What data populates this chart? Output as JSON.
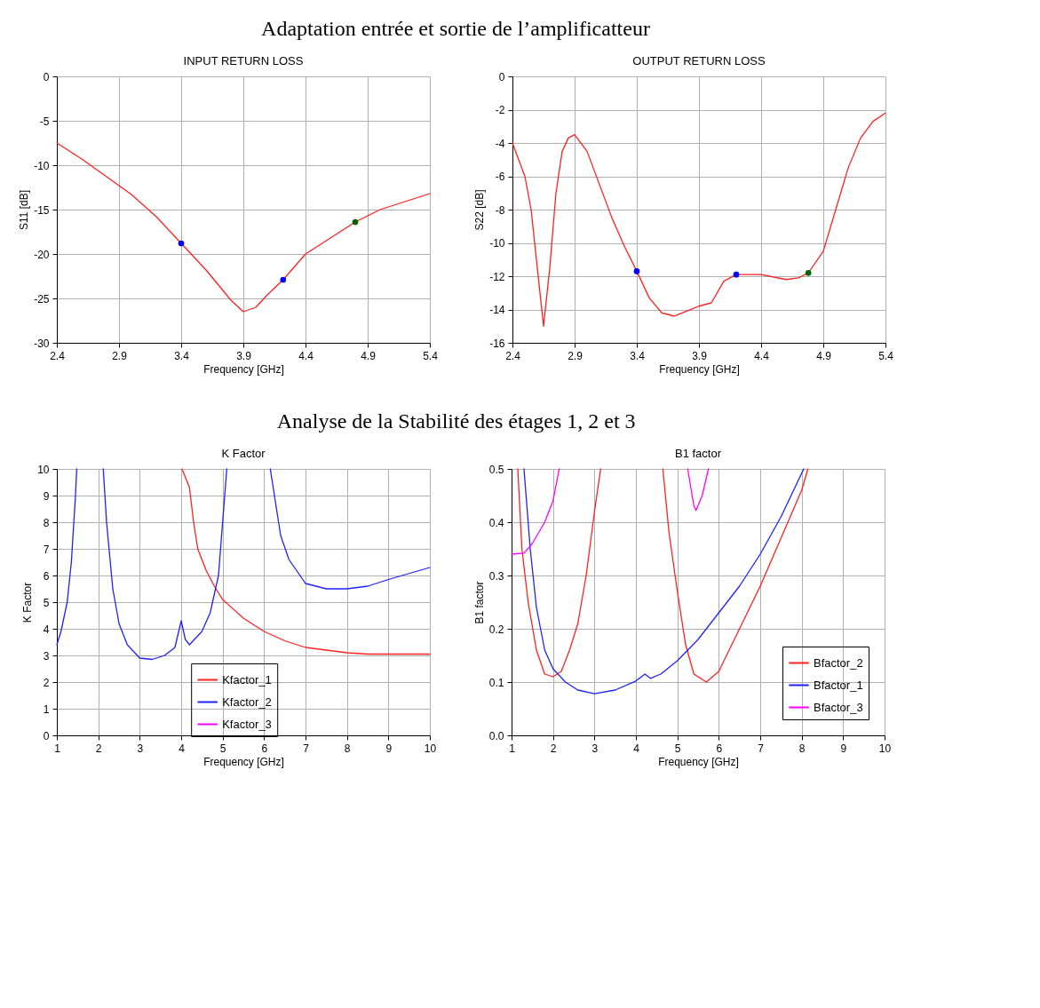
{
  "chart_data": [
    {
      "type": "line",
      "title": "INPUT RETURN LOSS",
      "xlabel": "Frequency [GHz]",
      "ylabel": "S11 [dB]",
      "annotations": [
        "Adaptation entrée et sortie de l’amplificatteur"
      ],
      "xlim": [
        2.4,
        5.4
      ],
      "xticks": [
        2.4,
        2.9,
        3.4,
        3.9,
        4.4,
        4.9,
        5.4
      ],
      "ylim": [
        -30,
        0
      ],
      "yticks": [
        0,
        -5,
        -10,
        -15,
        -20,
        -25,
        -30
      ],
      "grid": true,
      "series": [
        {
          "color": "#ff2020",
          "x": [
            2.4,
            2.6,
            2.8,
            3.0,
            3.2,
            3.4,
            3.6,
            3.8,
            3.9,
            4.0,
            4.1,
            4.22,
            4.4,
            4.6,
            4.8,
            5.0,
            5.2,
            5.4
          ],
          "values": [
            -7.5,
            -9.3,
            -11.3,
            -13.3,
            -15.8,
            -18.8,
            -21.8,
            -25.2,
            -26.5,
            -26.0,
            -24.5,
            -22.9,
            -20.0,
            -18.2,
            -16.4,
            -15.0,
            -14.1,
            -13.2
          ]
        },
        {
          "type": "scatter",
          "marker": "circle",
          "x": [
            3.4,
            4.22,
            4.8
          ],
          "values": [
            -18.8,
            -22.9,
            -16.4
          ],
          "colors": [
            "#0000ff",
            "#0000ff",
            "#006400"
          ]
        }
      ]
    },
    {
      "type": "line",
      "title": "OUTPUT RETURN LOSS",
      "xlabel": "Frequency [GHz]",
      "ylabel": "S22 [dB]",
      "xlim": [
        2.4,
        5.4
      ],
      "xticks": [
        2.4,
        2.9,
        3.4,
        3.9,
        4.4,
        4.9,
        5.4
      ],
      "ylim": [
        -16,
        0
      ],
      "yticks": [
        0,
        -2,
        -4,
        -6,
        -8,
        -10,
        -12,
        -14,
        -16
      ],
      "grid": true,
      "series": [
        {
          "color": "#ff2020",
          "x": [
            2.4,
            2.5,
            2.55,
            2.6,
            2.65,
            2.7,
            2.75,
            2.8,
            2.85,
            2.9,
            3.0,
            3.1,
            3.2,
            3.3,
            3.4,
            3.5,
            3.6,
            3.7,
            3.8,
            3.9,
            4.0,
            4.1,
            4.2,
            4.4,
            4.6,
            4.7,
            4.78,
            4.9,
            5.0,
            5.1,
            5.2,
            5.3,
            5.4
          ],
          "values": [
            -4.0,
            -6.0,
            -8.0,
            -11.5,
            -15.0,
            -11.5,
            -7.0,
            -4.5,
            -3.7,
            -3.5,
            -4.5,
            -6.5,
            -8.5,
            -10.2,
            -11.7,
            -13.3,
            -14.2,
            -14.4,
            -14.1,
            -13.8,
            -13.6,
            -12.3,
            -11.9,
            -11.9,
            -12.2,
            -12.1,
            -11.8,
            -10.5,
            -8.0,
            -5.5,
            -3.7,
            -2.7,
            -2.2
          ]
        },
        {
          "type": "scatter",
          "marker": "circle",
          "x": [
            3.4,
            4.2,
            4.78
          ],
          "values": [
            -11.7,
            -11.9,
            -11.8
          ],
          "colors": [
            "#0000ff",
            "#0000ff",
            "#006400"
          ]
        }
      ]
    },
    {
      "type": "line",
      "title": "K Factor",
      "xlabel": "Frequency [GHz]",
      "ylabel": "K Factor",
      "annotations": [
        "Analyse de la Stabilité des étages 1, 2 et 3"
      ],
      "xlim": [
        1,
        10
      ],
      "xticks": [
        1,
        2,
        3,
        4,
        5,
        6,
        7,
        8,
        9,
        10
      ],
      "ylim": [
        0,
        10
      ],
      "yticks": [
        0,
        1,
        2,
        3,
        4,
        5,
        6,
        7,
        8,
        9,
        10
      ],
      "grid": true,
      "legend": "bottom",
      "series": [
        {
          "name": "Kfactor_1",
          "color": "#ff2020",
          "x": [
            4.02,
            4.2,
            4.3,
            4.4,
            4.6,
            4.8,
            5.0,
            5.5,
            6.0,
            6.5,
            7.0,
            7.5,
            8.0,
            8.5,
            10
          ],
          "values": [
            10,
            9.3,
            8.0,
            7.0,
            6.2,
            5.6,
            5.1,
            4.4,
            3.9,
            3.55,
            3.3,
            3.2,
            3.1,
            3.05,
            3.05
          ]
        },
        {
          "name": "Kfactor_2",
          "color": "#2020ff",
          "x": [
            1.0,
            1.1,
            1.25,
            1.35,
            1.45,
            1.48,
            1.8,
            2.12,
            2.2,
            2.35,
            2.5,
            2.7,
            3.0,
            3.3,
            3.6,
            3.85,
            4.0,
            4.1,
            4.2,
            4.5,
            4.7,
            4.9,
            5.0,
            5.1,
            5.6,
            6.15,
            6.4,
            6.6,
            7.0,
            7.5,
            8.0,
            8.5,
            9.0,
            10
          ],
          "values": [
            3.4,
            3.9,
            5.0,
            6.5,
            9.0,
            10,
            null,
            10,
            8.0,
            5.5,
            4.2,
            3.4,
            2.9,
            2.85,
            3.0,
            3.3,
            4.3,
            3.6,
            3.4,
            3.9,
            4.6,
            6.0,
            8.0,
            10,
            null,
            10,
            7.5,
            6.6,
            5.7,
            5.5,
            5.5,
            5.6,
            5.85,
            6.3
          ]
        },
        {
          "name": "Kfactor_3",
          "color": "#ff00ff"
        }
      ]
    },
    {
      "type": "line",
      "title": "B1 factor",
      "xlabel": "Frequency [GHz]",
      "ylabel": "B1 factor",
      "xlim": [
        1,
        10
      ],
      "xticks": [
        1,
        2,
        3,
        4,
        5,
        6,
        7,
        8,
        9,
        10
      ],
      "ylim": [
        0,
        0.5
      ],
      "yticks": [
        {
          "value": 0,
          "label": "0.0"
        },
        0.1,
        0.2,
        0.3,
        0.4,
        0.5
      ],
      "grid": true,
      "legend": "bottom right",
      "series": [
        {
          "name": "Bfactor_2",
          "color": "#ff2020",
          "x": [
            1.15,
            1.25,
            1.4,
            1.6,
            1.8,
            2.0,
            2.2,
            2.4,
            2.6,
            2.8,
            3.0,
            3.15,
            4.0,
            4.65,
            4.8,
            5.0,
            5.2,
            5.4,
            5.7,
            6.0,
            6.5,
            7.0,
            7.5,
            8.0,
            8.15
          ],
          "values": [
            0.5,
            0.35,
            0.25,
            0.16,
            0.115,
            0.11,
            0.12,
            0.16,
            0.21,
            0.3,
            0.42,
            0.5,
            null,
            0.5,
            0.38,
            0.27,
            0.17,
            0.115,
            0.1,
            0.12,
            0.2,
            0.28,
            0.37,
            0.46,
            0.5
          ]
        },
        {
          "name": "Bfactor_1",
          "color": "#2020ff",
          "x": [
            1.3,
            1.45,
            1.6,
            1.8,
            2.0,
            2.3,
            2.6,
            3.0,
            3.5,
            4.0,
            4.22,
            4.35,
            4.6,
            5.0,
            5.5,
            6.0,
            6.5,
            7.0,
            7.5,
            8.05
          ],
          "values": [
            0.5,
            0.35,
            0.24,
            0.16,
            0.125,
            0.1,
            0.085,
            0.078,
            0.085,
            0.102,
            0.115,
            0.107,
            0.115,
            0.14,
            0.18,
            0.23,
            0.28,
            0.34,
            0.41,
            0.5
          ]
        },
        {
          "name": "Bfactor_3",
          "color": "#ff00ff",
          "x": [
            1.0,
            1.3,
            1.5,
            1.8,
            2.0,
            2.15,
            3.5,
            5.25,
            5.4,
            5.45,
            5.6,
            5.75
          ],
          "values": [
            0.34,
            0.342,
            0.36,
            0.4,
            0.44,
            0.5,
            null,
            0.5,
            0.43,
            0.422,
            0.45,
            0.5
          ]
        }
      ]
    }
  ]
}
